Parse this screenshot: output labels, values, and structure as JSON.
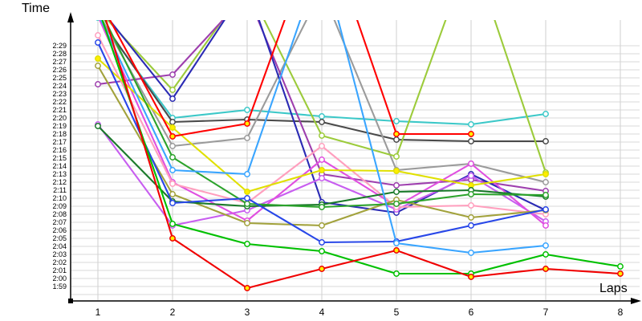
{
  "chart_data": {
    "type": "line",
    "y_axis_title": "Time",
    "x_axis_title": "Laps",
    "grid": true,
    "legend": "none",
    "y_unit": "min:sec per lap",
    "ylim": [
      "1:58",
      "2:32"
    ],
    "y_tick_labels": [
      "2:29",
      "2:28",
      "2:27",
      "2:26",
      "2:25",
      "2:24",
      "2:23",
      "2:22",
      "2:21",
      "2:20",
      "2:19",
      "2:18",
      "2:17",
      "2:16",
      "2:15",
      "2:14",
      "2:13",
      "2:12",
      "2:11",
      "2:10",
      "2:09",
      "2:08",
      "2:07",
      "2:06",
      "2:05",
      "2:04",
      "2:03",
      "2:02",
      "2:01",
      "2:00",
      "1:59"
    ],
    "x_tick_labels": [
      "1",
      "2",
      "3",
      "4",
      "5",
      "6",
      "7",
      "8"
    ],
    "note": "values above 2:32 are clipped off the top of the plot area",
    "series": [
      {
        "name": "cyan",
        "color": "#3cc8c8",
        "marker_fill": "#ffffff",
        "values": [
          "2:32.5",
          "2:20",
          "2:21",
          "2:20.2",
          "2:19.6",
          "2:19.2",
          "2:20.5",
          null
        ]
      },
      {
        "name": "darkgray",
        "color": "#4a4a4a",
        "marker_fill": "#ffffff",
        "values": [
          "2:32.8",
          "2:19.5",
          "2:19.8",
          "2:19.5",
          "2:17.3",
          "2:17.1",
          "2:17.1",
          null
        ]
      },
      {
        "name": "gray",
        "color": "#9b9b9b",
        "marker_fill": "#ffffff",
        "values": [
          "2:33.2",
          "2:16.5",
          "2:17.5",
          "2:36",
          "2:13.5",
          "2:14.3",
          "2:12",
          null
        ]
      },
      {
        "name": "yellowgreen",
        "color": "#9ccb3b",
        "marker_fill": "#ffffff",
        "values": [
          "2:33.5",
          "2:23.5",
          "2:36.5",
          "2:17.8",
          "2:15.2",
          "2:41",
          "2:13.2",
          null
        ]
      },
      {
        "name": "purple",
        "color": "#9e3fae",
        "marker_fill": "#ffffff",
        "values": [
          "2:24.2",
          "2:25.4",
          "2:35.5",
          "2:13",
          "2:11.6",
          "2:12.3",
          "2:10.9",
          null
        ]
      },
      {
        "name": "navy",
        "color": "#2b2bb4",
        "marker_fill": "#ffffff",
        "values": [
          "2:34",
          "2:22.4",
          "2:36.5",
          "2:09.5",
          "2:08.2",
          "2:13",
          "2:08.5",
          null
        ]
      },
      {
        "name": "violet",
        "color": "#c85ef0",
        "marker_fill": "#ffffff",
        "values": [
          "2:19.2",
          "2:06.6",
          "2:08.5",
          "2:12.5",
          "2:08.6",
          "2:12.8",
          "2:07.1",
          null
        ]
      },
      {
        "name": "magenta",
        "color": "#e04fe0",
        "marker_fill": "#ffffff",
        "values": [
          "2:32.7",
          "2:12",
          "2:07.2",
          "2:14.8",
          "2:09",
          "2:14.3",
          "2:06.6",
          null
        ]
      },
      {
        "name": "pink",
        "color": "#ff9fbe",
        "marker_fill": "#ffffff",
        "values": [
          "2:30.3",
          "2:11.8",
          "2:09.4",
          "2:16.5",
          "2:08.9",
          "2:09.1",
          "2:08",
          null
        ]
      },
      {
        "name": "yellow",
        "color": "#e0e000",
        "marker_fill": "#ffee00",
        "values": [
          "2:27.4",
          "2:18.8",
          "2:10.8",
          "2:13.5",
          "2:13.4",
          "2:11.6",
          "2:13",
          null
        ]
      },
      {
        "name": "khaki",
        "color": "#a2a23c",
        "marker_fill": "#ffffff",
        "values": [
          "2:26.5",
          "2:10.5",
          "2:06.9",
          "2:06.6",
          "2:09.8",
          "2:07.6",
          "2:08.5",
          null
        ]
      },
      {
        "name": "darkgreen",
        "color": "#1a7a2a",
        "marker_fill": "#ffffff",
        "values": [
          "2:19",
          "2:09.6",
          "2:09",
          "2:09.2",
          "2:10.8",
          "2:11",
          "2:10.2",
          null
        ]
      },
      {
        "name": "mediumgreen",
        "color": "#2ca32c",
        "marker_fill": "#ffffff",
        "values": [
          "2:34",
          "2:15.1",
          "2:09.3",
          "2:08.9",
          "2:09.3",
          "2:10.5",
          "2:10.4",
          null
        ]
      },
      {
        "name": "blue",
        "color": "#2847e8",
        "marker_fill": "#ffffff",
        "values": [
          "2:29.4",
          "2:09.4",
          "2:10",
          "2:04.5",
          "2:04.6",
          "2:06.6",
          "2:08.6",
          null
        ]
      },
      {
        "name": "dodgerblue",
        "color": "#3aa5ff",
        "marker_fill": "#ffffff",
        "values": [
          "2:33",
          "2:13.5",
          "2:13",
          "2:40",
          "2:04.4",
          "2:03.2",
          "2:04.1",
          null
        ]
      },
      {
        "name": "green",
        "color": "#00c000",
        "marker_fill": "#ffffff",
        "values": [
          "2:33.8",
          "2:06.8",
          "2:04.3",
          "2:03.4",
          "2:00.6",
          "2:00.6",
          "2:03",
          "2:01.5"
        ]
      },
      {
        "name": "red2",
        "color": "#f00000",
        "marker_fill": "#ffee00",
        "values": [
          "2:35.5",
          "2:05",
          "1:58.8",
          "2:01.2",
          "2:03.5",
          "2:00.2",
          "2:01.2",
          "2:00.6"
        ]
      },
      {
        "name": "red",
        "color": "#ff0000",
        "marker_fill": "#ffee00",
        "values": [
          "2:35",
          "2:17.7",
          "2:19.3",
          "2:45",
          "2:18",
          "2:18",
          null,
          null
        ]
      }
    ]
  }
}
